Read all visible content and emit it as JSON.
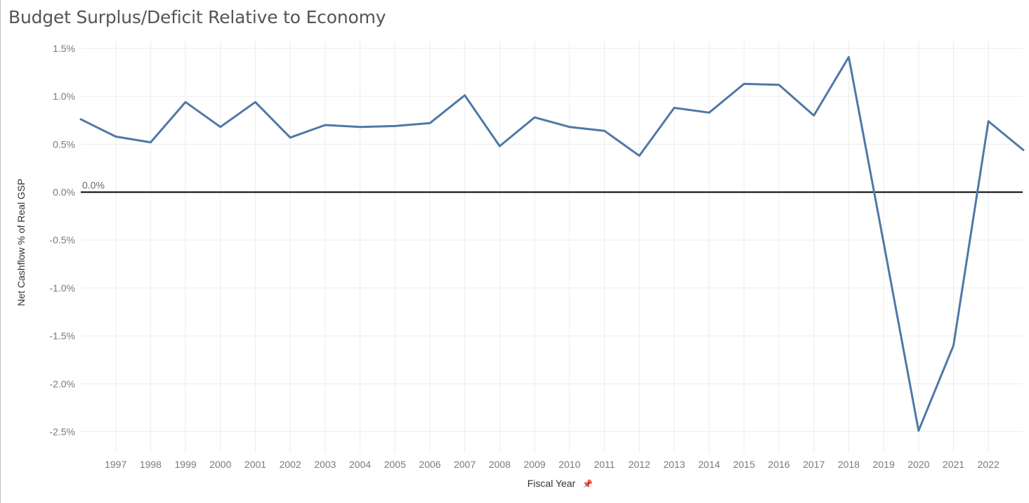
{
  "title": "Budget Surplus/Deficit Relative to Economy",
  "colors": {
    "series": "#4e79a7",
    "reference_line": "#000000",
    "grid": "#ececec",
    "title": "#555555"
  },
  "chart_data": {
    "type": "line",
    "title": "Budget Surplus/Deficit Relative to Economy",
    "xlabel": "Fiscal Year",
    "ylabel": "Net Cashflow % of Real GSP",
    "xlabel_icon": "pin-icon",
    "x": [
      1996,
      1997,
      1998,
      1999,
      2000,
      2001,
      2002,
      2003,
      2004,
      2005,
      2006,
      2007,
      2008,
      2009,
      2010,
      2011,
      2012,
      2013,
      2014,
      2015,
      2016,
      2017,
      2018,
      2019,
      2020,
      2021,
      2022,
      2023
    ],
    "x_tick_labels": [
      "1997",
      "1998",
      "1999",
      "2000",
      "2001",
      "2002",
      "2003",
      "2004",
      "2005",
      "2006",
      "2007",
      "2008",
      "2009",
      "2010",
      "2011",
      "2012",
      "2013",
      "2014",
      "2015",
      "2016",
      "2017",
      "2018",
      "2019",
      "2020",
      "2021",
      "2022"
    ],
    "series": [
      {
        "values": [
          0.76,
          0.58,
          0.52,
          0.94,
          0.68,
          0.94,
          0.57,
          0.7,
          0.68,
          0.69,
          0.72,
          1.01,
          0.48,
          0.78,
          0.68,
          0.64,
          0.38,
          0.88,
          0.83,
          1.13,
          1.12,
          0.8,
          1.41,
          -0.53,
          -2.49,
          -1.6,
          0.74,
          0.44
        ]
      }
    ],
    "y_ticks": [
      1.5,
      1.0,
      0.5,
      0.0,
      -0.5,
      -1.0,
      -1.5,
      -2.0,
      -2.5
    ],
    "y_tick_labels": [
      "1.5%",
      "1.0%",
      "0.5%",
      "0.0%",
      "-0.5%",
      "-1.0%",
      "-1.5%",
      "-2.0%",
      "-2.5%"
    ],
    "ylim": [
      -2.7,
      1.6
    ],
    "xlim": [
      1996,
      2023
    ],
    "reference_line": {
      "value": 0.0,
      "label": "0.0%"
    },
    "grid": true,
    "legend": "none"
  }
}
